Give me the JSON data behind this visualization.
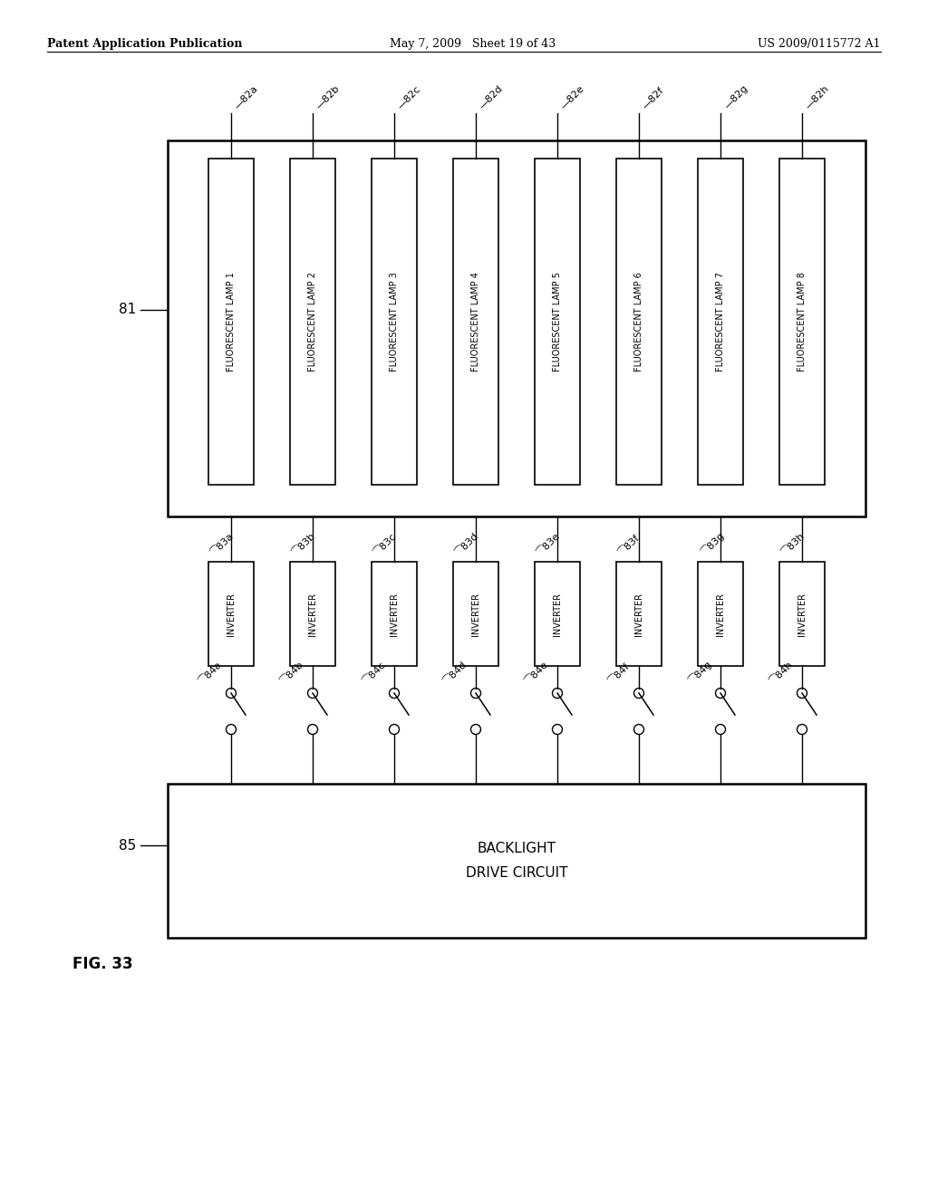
{
  "header_left": "Patent Application Publication",
  "header_mid": "May 7, 2009   Sheet 19 of 43",
  "header_right": "US 2009/0115772 A1",
  "fig_label": "FIG. 33",
  "bg_color": "#ffffff",
  "num_lamps": 8,
  "lamp_labels": [
    "FLUORESCENT LAMP 1",
    "FLUORESCENT LAMP 2",
    "FLUORESCENT LAMP 3",
    "FLUORESCENT LAMP 4",
    "FLUORESCENT LAMP 5",
    "FLUORESCENT LAMP 6",
    "FLUORESCENT LAMP 7",
    "FLUORESCENT LAMP 8"
  ],
  "lamp_ids": [
    "82a",
    "82b",
    "82c",
    "82d",
    "82e",
    "82f",
    "82g",
    "82h"
  ],
  "inverter_ids": [
    "83a",
    "83b",
    "83c",
    "83d",
    "83e",
    "83f",
    "83g",
    "83h"
  ],
  "switch_ids": [
    "84a",
    "84b",
    "84c",
    "84d",
    "84e",
    "84f",
    "84g",
    "84h"
  ],
  "backlight_text": "BACKLIGHT\nDRIVE CIRCUIT",
  "backlight_id": "85",
  "panel_id": "81"
}
